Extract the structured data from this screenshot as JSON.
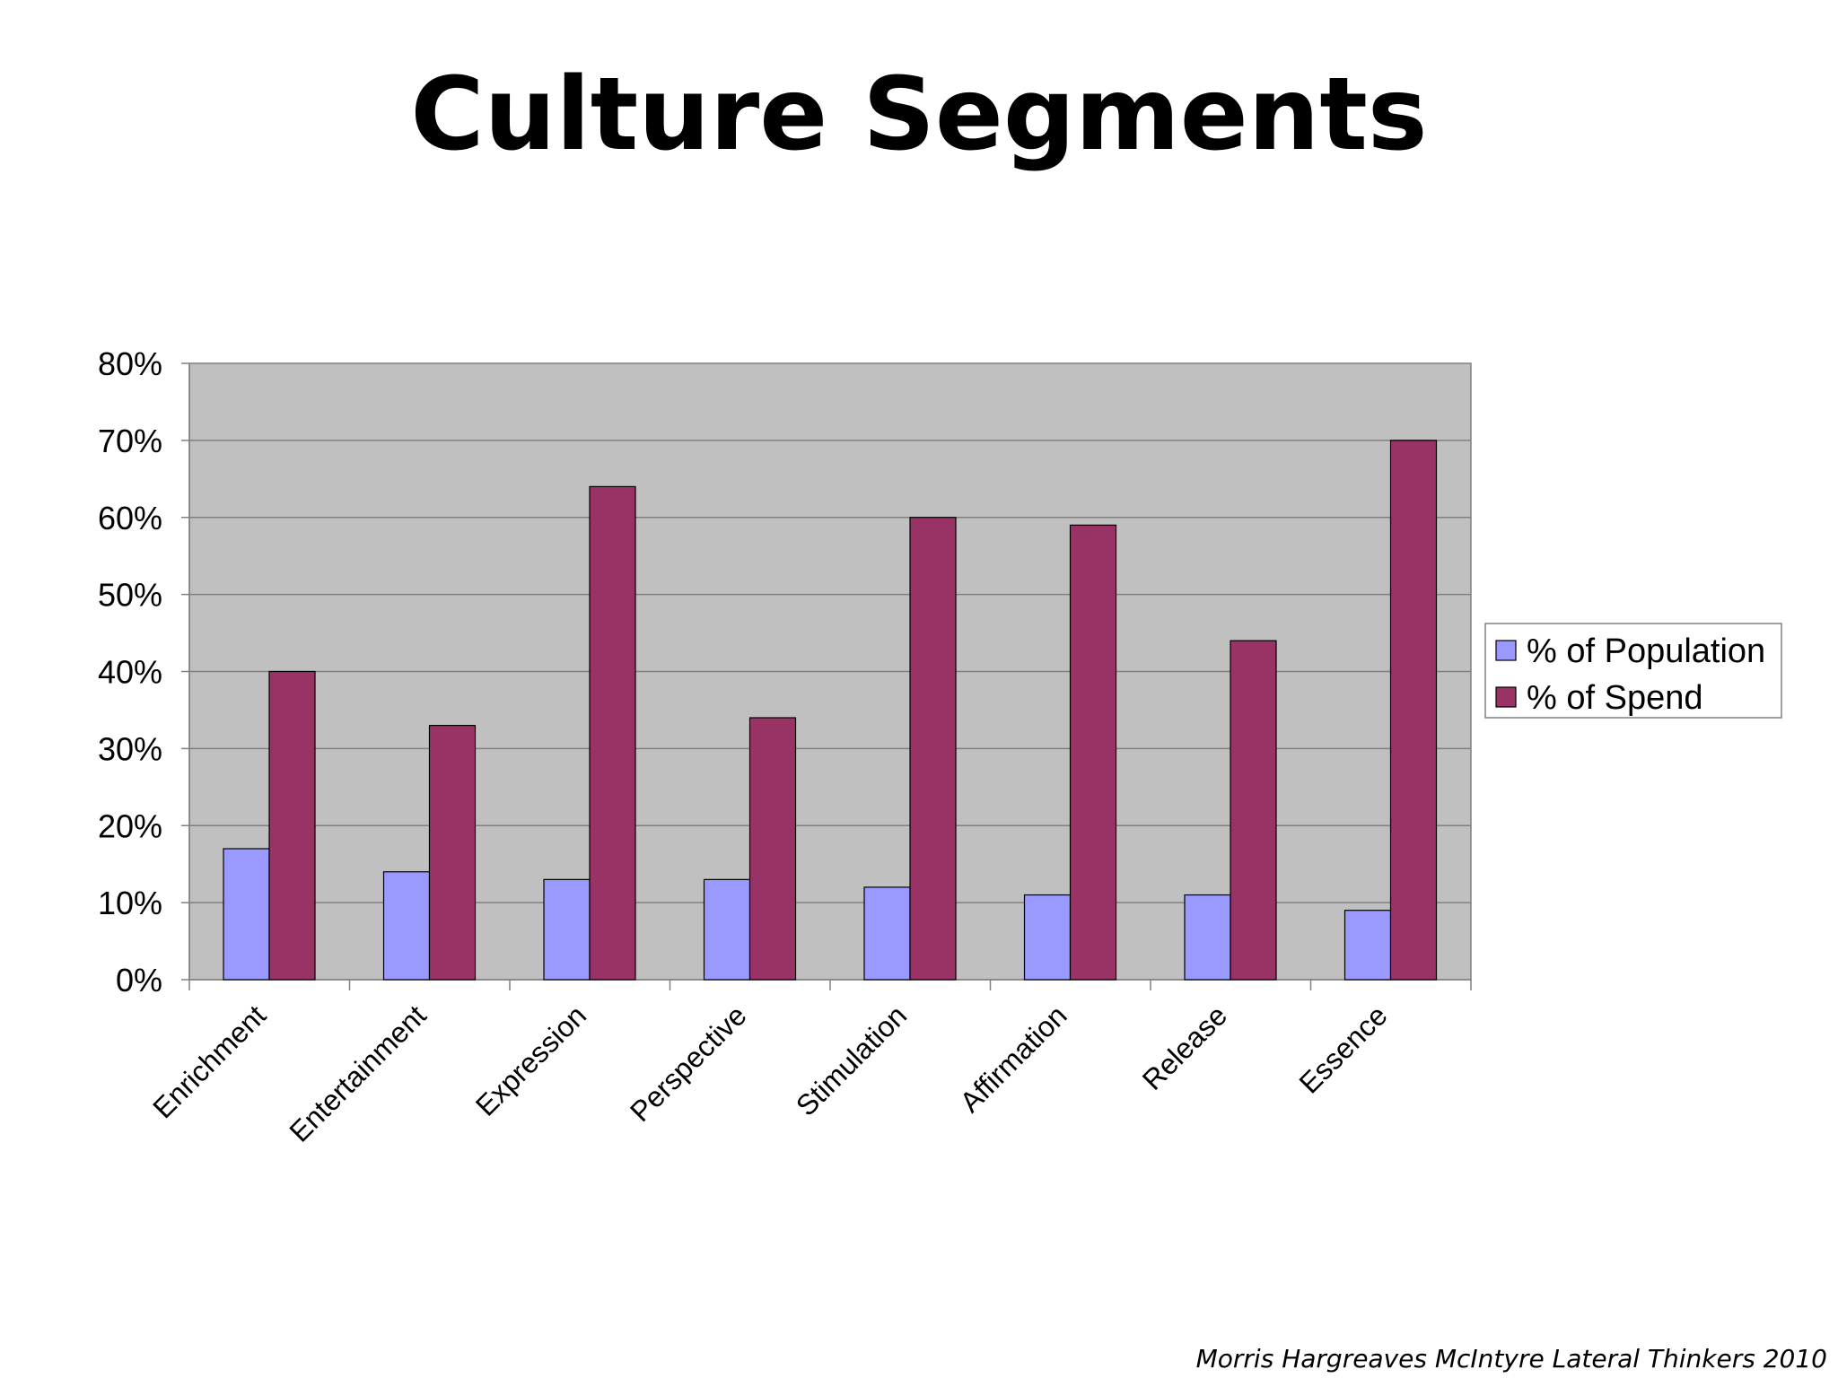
{
  "slide": {
    "title": "Culture Segments",
    "source": "Morris Hargreaves McIntyre Lateral Thinkers 2010"
  },
  "chart_data": {
    "type": "bar",
    "title": "",
    "xlabel": "",
    "ylabel": "",
    "categories": [
      "Enrichment",
      "Entertainment",
      "Expression",
      "Perspective",
      "Stimulation",
      "Affirmation",
      "Release",
      "Essence"
    ],
    "series": [
      {
        "name": "% of Population",
        "color": "#9999ff",
        "values": [
          17,
          14,
          13,
          13,
          12,
          11,
          11,
          9
        ]
      },
      {
        "name": "% of Spend",
        "color": "#993366",
        "values": [
          40,
          33,
          64,
          34,
          60,
          59,
          44,
          70
        ]
      }
    ],
    "ylim": [
      0,
      80
    ],
    "yticks": [
      "0%",
      "10%",
      "20%",
      "30%",
      "40%",
      "50%",
      "60%",
      "70%",
      "80%"
    ],
    "grid": true,
    "plot_background": "#c0c0c0",
    "legend_position": "right"
  }
}
